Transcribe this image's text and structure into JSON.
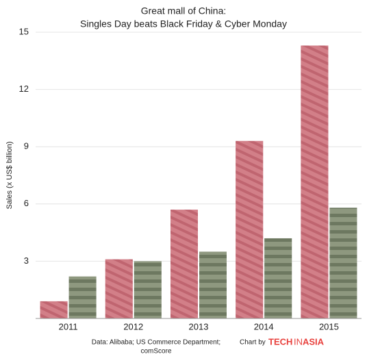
{
  "chart_data": {
    "type": "bar",
    "title": [
      "Great mall of China:",
      "Singles Day beats Black Friday & Cyber Monday"
    ],
    "y_label": "Sales (x US$ billion)",
    "categories": [
      "2011",
      "2012",
      "2013",
      "2014",
      "2015"
    ],
    "series": [
      {
        "color": "#c9727c",
        "values": [
          0.9,
          3.1,
          5.7,
          9.3,
          14.3
        ]
      },
      {
        "color": "#7f8a70",
        "values": [
          2.2,
          3.0,
          3.5,
          4.2,
          5.8
        ]
      }
    ],
    "ylim": [
      0,
      15
    ],
    "yticks": [
      3,
      6,
      9,
      12,
      15
    ],
    "grid": true,
    "source": [
      "Data: Alibaba; US Commerce Department;",
      "comScore"
    ],
    "credit": "Chart by",
    "logo": [
      "TECH",
      "IN",
      "ASIA"
    ]
  }
}
